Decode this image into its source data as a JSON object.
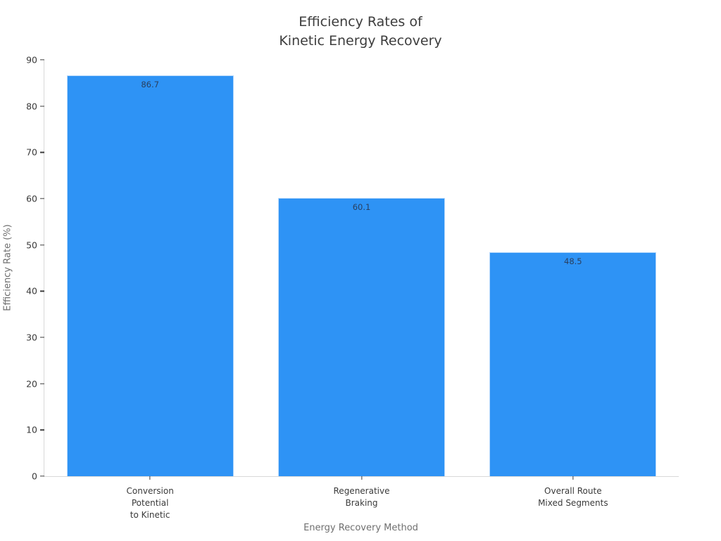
{
  "chart_data": {
    "type": "bar",
    "title": "Efficiency Rates of\nKinetic Energy Recovery",
    "categories": [
      "Conversion\nPotential\nto Kinetic",
      "Regenerative\nBraking",
      "Overall Route\nMixed Segments"
    ],
    "values": [
      86.7,
      60.1,
      48.5
    ],
    "value_labels": [
      "86.7",
      "60.1",
      "48.5"
    ],
    "xlabel": "Energy Recovery Method",
    "ylabel": "Efficiency Rate (%)",
    "ylim": [
      0,
      90
    ],
    "yticks": [
      0,
      10,
      20,
      30,
      40,
      50,
      60,
      70,
      80,
      90
    ],
    "grid": false,
    "legend": "none",
    "colors": {
      "bar": "#2e93f5",
      "value_label": "#2a3f5f",
      "axis_line": "#d9d9d9",
      "tick_mark": "#3c3c3c",
      "tick_label": "#3a3a3a",
      "axis_title": "#6f6f6f",
      "title": "#3d3d3d",
      "background": "#ffffff"
    }
  }
}
